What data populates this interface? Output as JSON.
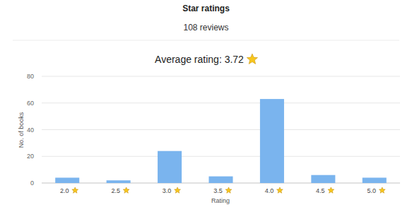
{
  "chart_data": {
    "type": "bar",
    "title": "Star ratings",
    "subtitle": "108 reviews",
    "annotation": "Average rating: 3.72",
    "x_label": "Rating",
    "y_label": "No. of books",
    "categories": [
      "2.0",
      "2.5",
      "3.0",
      "3.5",
      "4.0",
      "4.5",
      "5.0"
    ],
    "values": [
      4,
      2,
      24,
      5,
      63,
      6,
      4
    ],
    "color": "#7ab4ee",
    "ylim": [
      0,
      80
    ],
    "yticks": [
      0,
      20,
      40,
      60,
      80
    ],
    "grid": true
  }
}
